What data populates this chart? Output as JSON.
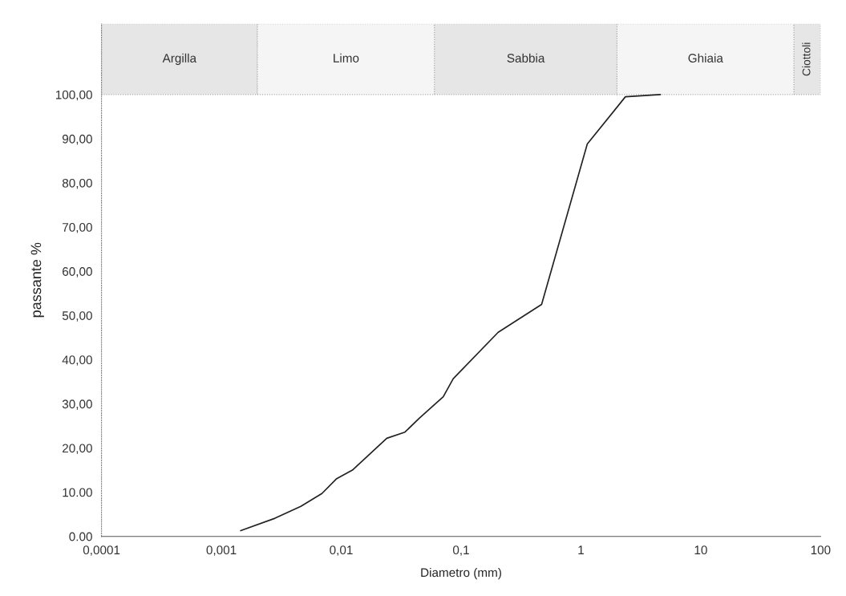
{
  "chart_data": {
    "type": "line",
    "xlabel": "Diametro (mm)",
    "ylabel": "passante %",
    "log": "x",
    "xlim": [
      0.0001,
      100
    ],
    "ylim": [
      0,
      116
    ],
    "xticks": [
      {
        "value": 0.0001,
        "label": "0,0001"
      },
      {
        "value": 0.001,
        "label": "0,001"
      },
      {
        "value": 0.01,
        "label": "0,01"
      },
      {
        "value": 0.1,
        "label": "0,1"
      },
      {
        "value": 1,
        "label": "1"
      },
      {
        "value": 10,
        "label": "10"
      },
      {
        "value": 100,
        "label": "100"
      }
    ],
    "yticks": [
      {
        "value": 0,
        "label": "0.00"
      },
      {
        "value": 10,
        "label": "10.00"
      },
      {
        "value": 20,
        "label": "20,00"
      },
      {
        "value": 30,
        "label": "30,00"
      },
      {
        "value": 40,
        "label": "40,00"
      },
      {
        "value": 50,
        "label": "50,00"
      },
      {
        "value": 60,
        "label": "60,00"
      },
      {
        "value": 70,
        "label": "70,00"
      },
      {
        "value": 80,
        "label": "80,00"
      },
      {
        "value": 90,
        "label": "90,00"
      },
      {
        "value": 100,
        "label": "100,00"
      }
    ],
    "series": [
      {
        "color": "#222222",
        "x": [
          0.00145,
          0.0028,
          0.0046,
          0.0069,
          0.0091,
          0.0124,
          0.024,
          0.034,
          0.045,
          0.071,
          0.086,
          0.204,
          0.47,
          1.13,
          2.35,
          4.6
        ],
        "values": [
          1.3,
          4.1,
          6.8,
          9.7,
          13.0,
          15.0,
          22.2,
          23.6,
          26.8,
          31.6,
          35.7,
          46.2,
          52.5,
          88.8,
          99.5,
          100
        ]
      }
    ],
    "bands": [
      {
        "axis": "x",
        "from": 0.0001,
        "to": 0.002,
        "label": "Argilla",
        "color": "#e6e6e6"
      },
      {
        "axis": "x",
        "from": 0.002,
        "to": 0.06,
        "label": "Limo",
        "color": "#f5f5f5"
      },
      {
        "axis": "x",
        "from": 0.06,
        "to": 2,
        "label": "Sabbia",
        "color": "#e6e6e6"
      },
      {
        "axis": "x",
        "from": 2,
        "to": 60,
        "label": "Ghiaia",
        "color": "#f5f5f5"
      },
      {
        "axis": "x",
        "from": 60,
        "to": 100,
        "label": "Ciottoli",
        "color": "#e6e6e6"
      }
    ]
  }
}
